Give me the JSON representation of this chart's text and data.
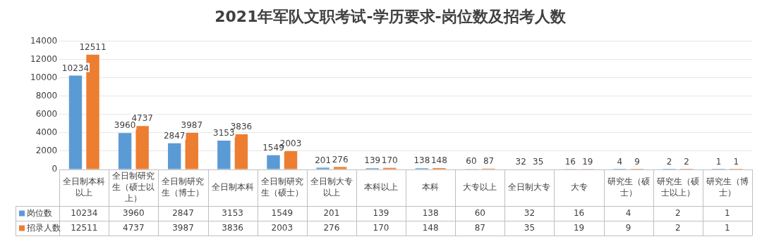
{
  "chart_data": {
    "type": "bar",
    "title": "2021年军队文职考试-学历要求-岗位数及招考人数",
    "categories": [
      "全日制本科以上",
      "全日制研究生（硕士以上）",
      "全日制研究生（博士）",
      "全日制本科",
      "全日制研究生（硕士）",
      "全日制大专以上",
      "本科以上",
      "本科",
      "大专以上",
      "全日制大专",
      "大专",
      "研究生（硕士）",
      "研究生（硕士以上）",
      "研究生（博士）"
    ],
    "series": [
      {
        "name": "岗位数",
        "color": "#5b9bd5",
        "values": [
          10234,
          3960,
          2847,
          3153,
          1549,
          201,
          139,
          138,
          60,
          32,
          16,
          4,
          2,
          1
        ],
        "value_labels": [
          "10234",
          "3960",
          "2847",
          "3153",
          "1549",
          "201",
          "139",
          "138",
          "60",
          "32",
          "16",
          "4",
          "2",
          "1"
        ]
      },
      {
        "name": "招录人数",
        "color": "#ed7d31",
        "values": [
          12511,
          4737,
          3987,
          3836,
          2003,
          276,
          170,
          148,
          87,
          35,
          19,
          9,
          2,
          1
        ],
        "value_labels": [
          "12511",
          "4737",
          "3987",
          "3836",
          "2003",
          "276",
          "170",
          "148",
          "87",
          "35",
          "19",
          "9",
          "2",
          "1"
        ]
      }
    ],
    "annotations": [
      "10234",
      "3960",
      "2847",
      "3153",
      "1549",
      "201",
      "139",
      "138",
      "60",
      "32",
      "16",
      "4",
      "2",
      "1",
      "12511",
      "4737",
      "3987",
      "3836",
      "2003",
      "276",
      "170",
      "148",
      "87",
      "35",
      "19",
      "9",
      "2",
      "1"
    ],
    "ylim": [
      0,
      14000
    ],
    "yticks": [
      0,
      2000,
      4000,
      6000,
      8000,
      10000,
      12000,
      14000
    ],
    "grid": "y",
    "legend": "bottom"
  }
}
